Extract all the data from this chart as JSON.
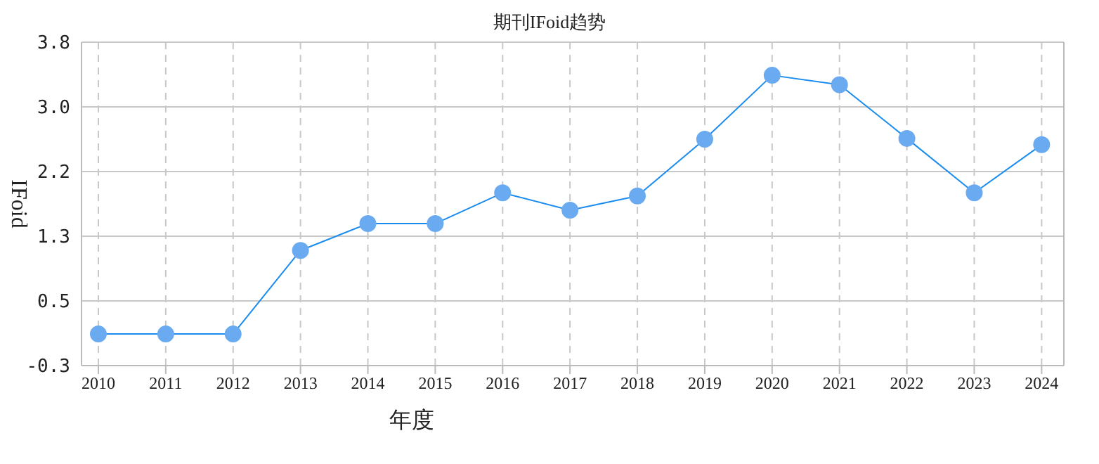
{
  "chart_data": {
    "type": "line",
    "title": "期刊IFoid趋势",
    "xlabel": "年度",
    "ylabel": "IFoid",
    "categories": [
      "2010",
      "2011",
      "2012",
      "2013",
      "2014",
      "2015",
      "2016",
      "2017",
      "2018",
      "2019",
      "2020",
      "2021",
      "2022",
      "2023",
      "2024"
    ],
    "series": [
      {
        "color": "#1a8cf0",
        "values": [
          0.1,
          0.1,
          0.1,
          1.16,
          1.5,
          1.5,
          1.89,
          1.67,
          1.85,
          2.57,
          3.38,
          3.26,
          2.58,
          1.89,
          2.5
        ]
      }
    ],
    "ylim": [
      -0.3,
      3.8
    ],
    "yticks": [
      {
        "value": -0.3,
        "label": "-0.3"
      },
      {
        "value": 0.52,
        "label": "0.5"
      },
      {
        "value": 1.34,
        "label": "1.3"
      },
      {
        "value": 2.16,
        "label": "2.2"
      },
      {
        "value": 2.98,
        "label": "3.0"
      },
      {
        "value": 3.8,
        "label": "3.8"
      }
    ],
    "grid": true,
    "marker": "circle",
    "line_style": "solid"
  }
}
